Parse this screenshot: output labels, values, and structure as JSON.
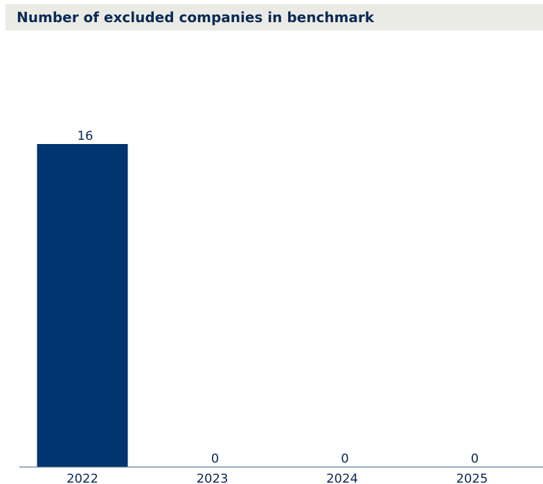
{
  "colors": {
    "bar": "#00356f",
    "text": "#0b2a55",
    "axis": "#5a7896",
    "title_background": "#ebebe6"
  },
  "chart_data": {
    "type": "bar",
    "title": "Number of excluded companies in benchmark",
    "categories": [
      "2022",
      "2023",
      "2024",
      "2025"
    ],
    "values": [
      16,
      0,
      0,
      0
    ],
    "data_labels": [
      "16",
      "0",
      "0",
      "0"
    ],
    "xlabel": "",
    "ylabel": "",
    "ylim": [
      0,
      16
    ],
    "grid": false,
    "legend": "none"
  }
}
